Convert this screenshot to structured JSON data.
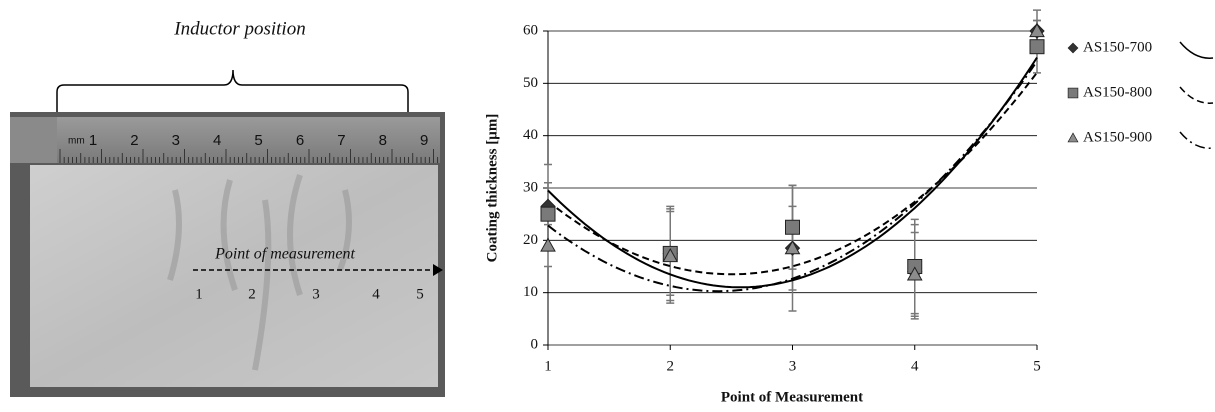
{
  "figure_photo": {
    "title": "Inductor position",
    "arrow_label": "Point of measurement",
    "ruler_unit": "mm",
    "ruler_labels": [
      "1",
      "2",
      "3",
      "4",
      "5",
      "6",
      "7",
      "8",
      "9"
    ],
    "point_labels": [
      "1",
      "2",
      "3",
      "4",
      "5"
    ]
  },
  "chart_data": {
    "type": "scatter",
    "x_label": "Point of Measurement",
    "y_label": "Coating thickness [µm]",
    "x": [
      1,
      2,
      3,
      4,
      5
    ],
    "xlim": [
      1,
      5
    ],
    "xticks": [
      1,
      2,
      3,
      4,
      5
    ],
    "ylim": [
      0,
      60
    ],
    "yticks": [
      0,
      10,
      20,
      30,
      40,
      50,
      60
    ],
    "grid": true,
    "legend": "right",
    "trendline": "poly2",
    "series": [
      {
        "name": "AS150-700",
        "color": "#333333",
        "marker": "diamond",
        "line_style": "solid",
        "values": [
          26.5,
          17.5,
          18.5,
          14,
          60
        ],
        "errors": [
          8,
          8,
          12,
          9,
          2
        ]
      },
      {
        "name": "AS150-800",
        "color": "#7a7a7a",
        "marker": "square",
        "line_style": "dashed",
        "values": [
          25,
          17.5,
          22.5,
          15,
          57
        ],
        "errors": [
          6,
          9,
          8,
          9,
          5
        ]
      },
      {
        "name": "AS150-900",
        "color": "#8c8c8c",
        "marker": "triangle",
        "line_style": "dashdot",
        "values": [
          19,
          17,
          18.5,
          13.5,
          60
        ],
        "errors": [
          4,
          9,
          8,
          8,
          4
        ]
      }
    ]
  }
}
